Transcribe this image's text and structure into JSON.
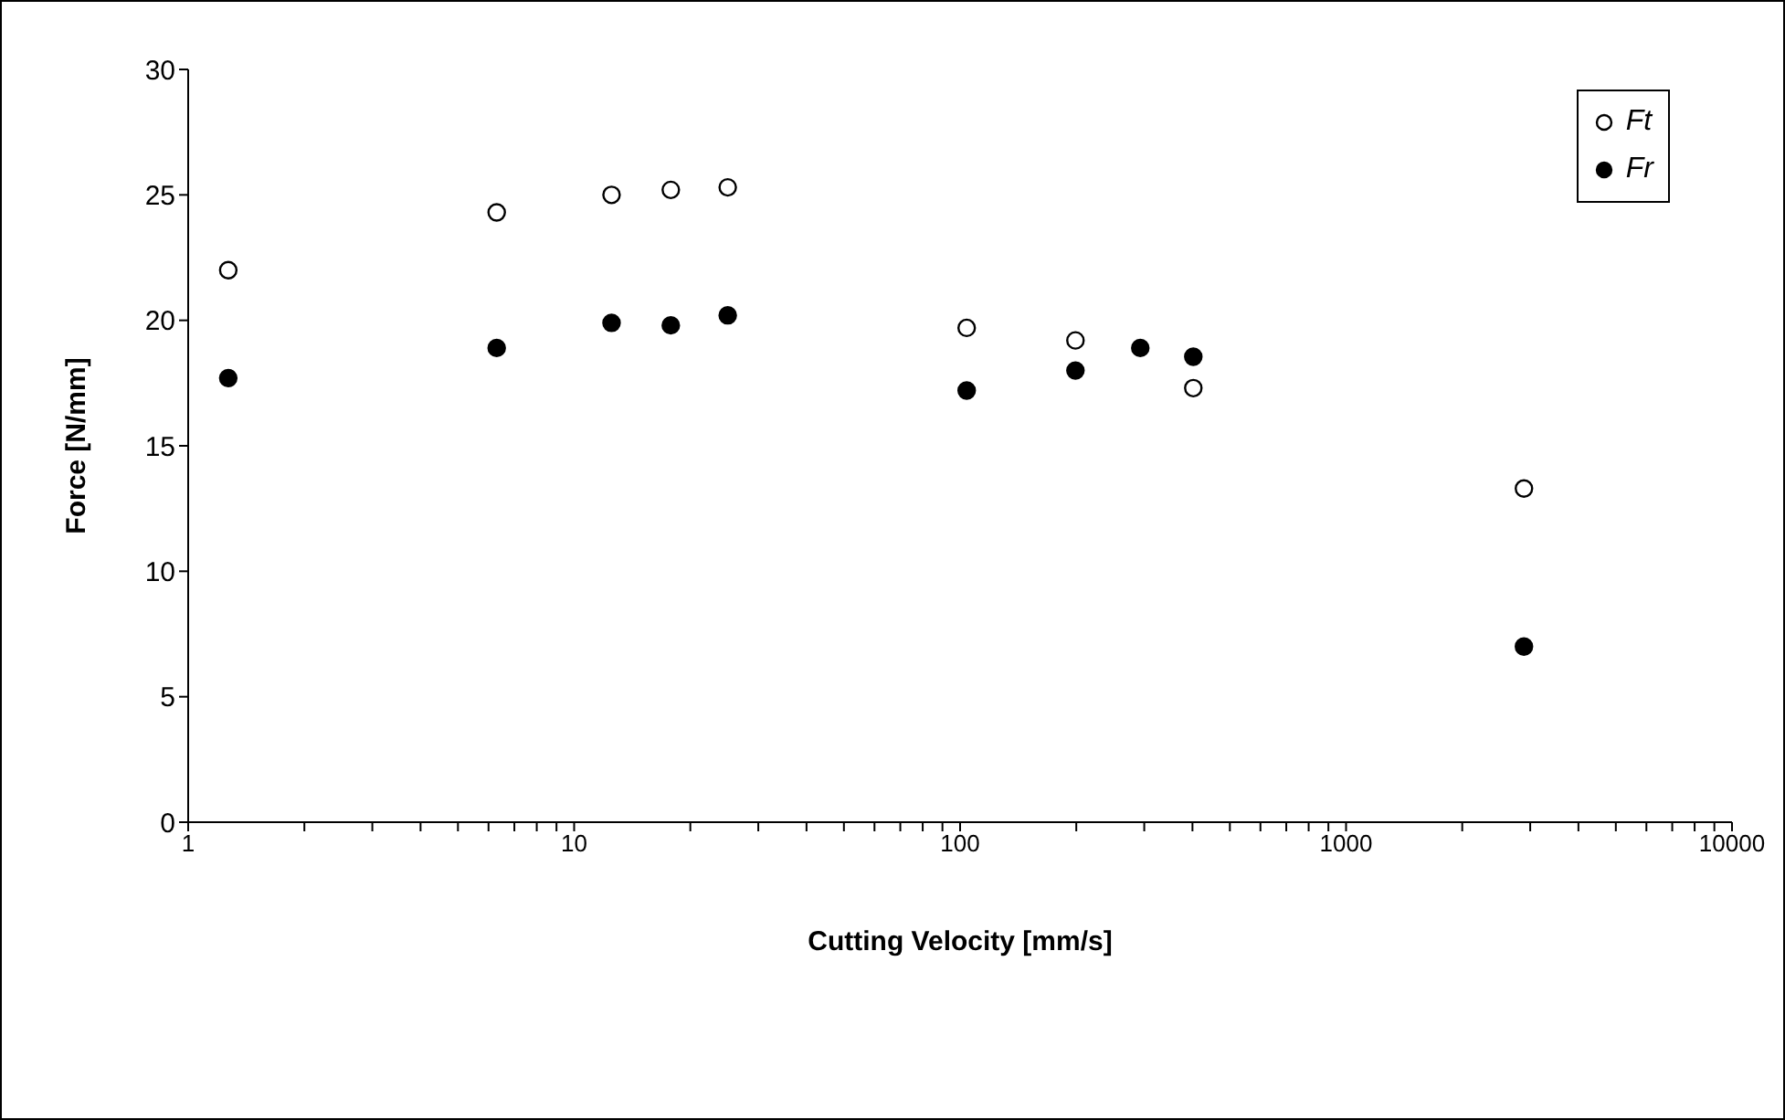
{
  "chart_data": {
    "type": "scatter",
    "xlabel": "Cutting Velocity [mm/s]",
    "ylabel": "Force [N/mm]",
    "log": "x",
    "xlim": [
      1,
      10000
    ],
    "xticks": [
      1,
      {
        "value": 2,
        "label": null
      },
      {
        "value": 3,
        "label": null
      },
      {
        "value": 4,
        "label": null
      },
      {
        "value": 5,
        "label": null
      },
      {
        "value": 6,
        "label": null
      },
      {
        "value": 7,
        "label": null
      },
      {
        "value": 8,
        "label": null
      },
      {
        "value": 9,
        "label": null
      },
      10,
      {
        "value": 20,
        "label": null
      },
      {
        "value": 30,
        "label": null
      },
      {
        "value": 40,
        "label": null
      },
      {
        "value": 50,
        "label": null
      },
      {
        "value": 60,
        "label": null
      },
      {
        "value": 70,
        "label": null
      },
      {
        "value": 80,
        "label": null
      },
      {
        "value": 90,
        "label": null
      },
      100,
      {
        "value": 200,
        "label": null
      },
      {
        "value": 300,
        "label": null
      },
      {
        "value": 400,
        "label": null
      },
      {
        "value": 500,
        "label": null
      },
      {
        "value": 600,
        "label": null
      },
      {
        "value": 700,
        "label": null
      },
      {
        "value": 800,
        "label": null
      },
      {
        "value": 900,
        "label": null
      },
      1000,
      {
        "value": 2000,
        "label": null
      },
      {
        "value": 3000,
        "label": null
      },
      {
        "value": 4000,
        "label": null
      },
      {
        "value": 5000,
        "label": null
      },
      {
        "value": 6000,
        "label": null
      },
      {
        "value": 7000,
        "label": null
      },
      {
        "value": 8000,
        "label": null
      },
      {
        "value": 9000,
        "label": null
      },
      10000
    ],
    "ylim": [
      0,
      30
    ],
    "yticks": [
      0,
      5,
      10,
      15,
      20,
      25,
      30
    ],
    "grid": false,
    "legend": "top right",
    "marker": "circle",
    "series": [
      {
        "name": "Ft",
        "color": "#ffffff",
        "x": [
          1.27,
          6.3,
          12.5,
          17.8,
          25,
          104,
          199,
          293,
          402,
          2890
        ],
        "values": [
          22.0,
          24.3,
          25.0,
          25.2,
          25.3,
          19.7,
          19.2,
          null,
          17.3,
          13.3
        ]
      },
      {
        "name": "Fr",
        "color": "#000000",
        "x": [
          1.27,
          6.3,
          12.5,
          17.8,
          25,
          104,
          199,
          293,
          402,
          2890
        ],
        "values": [
          17.7,
          18.9,
          19.9,
          19.8,
          20.2,
          17.2,
          18.0,
          18.9,
          18.55,
          7.0
        ]
      }
    ]
  }
}
